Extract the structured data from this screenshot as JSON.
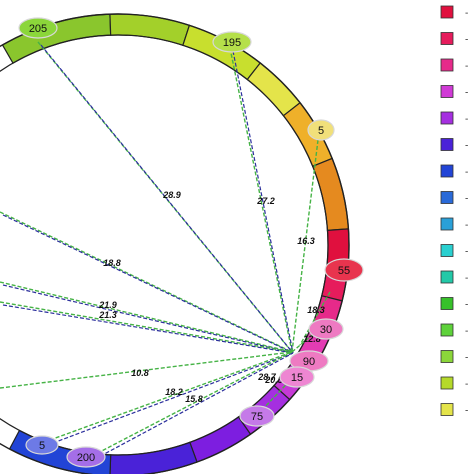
{
  "palette": {
    "yellow_green": "#b5d92a",
    "yellow": "#e4e44a",
    "orange_light": "#f2a324",
    "orange": "#e58a1f",
    "red": "#e0103e",
    "pink": "#e61c7d",
    "magenta": "#e03cbf",
    "violet": "#a52fe0",
    "purple": "#7d1ee0",
    "indigo": "#4a22d8",
    "blue": "#2244d6",
    "green": "#37c12a",
    "teal": "#23c9a8",
    "cyan": "#2ad0d0",
    "light_green": "#8bd63a",
    "green_dash": "#46b346",
    "navy_dash": "#2b2f9c"
  },
  "ring_segments": [
    {
      "color": "#8ac62d"
    },
    {
      "color": "#a3d02a"
    },
    {
      "color": "#c8df2e"
    },
    {
      "color": "#e4e44a"
    },
    {
      "color": "#efb02a"
    },
    {
      "color": "#e58a1f"
    },
    {
      "color": "#e0103e"
    },
    {
      "color": "#e61c5c"
    },
    {
      "color": "#e62a8a"
    },
    {
      "color": "#e33cb3"
    },
    {
      "color": "#c63ad6"
    },
    {
      "color": "#a52fe0"
    },
    {
      "color": "#7d1ee0"
    },
    {
      "color": "#4a22d8"
    },
    {
      "color": "#2244d6"
    }
  ],
  "nodes": [
    {
      "label": "205",
      "fill": "#8bd63a"
    },
    {
      "label": "195",
      "fill": "#b5e04a"
    },
    {
      "label": "5",
      "fill": "#f1e07a"
    },
    {
      "label": "55",
      "fill": "#e8344e"
    },
    {
      "label": "30",
      "fill": "#ee7ac2"
    },
    {
      "label": "90",
      "fill": "#ee7ac2"
    },
    {
      "label": "15",
      "fill": "#ee86d2"
    },
    {
      "label": "75",
      "fill": "#c57ae8"
    },
    {
      "label": "200",
      "fill": "#a46ee8"
    },
    {
      "label": "5",
      "fill": "#6d7ae6"
    }
  ],
  "edge_labels": [
    "28.9",
    "27.2",
    "16.3",
    "18.8",
    "21.9",
    "21.3",
    "10.8",
    "18.2",
    "15.8",
    "18.3",
    "12.8",
    "20.5",
    "28.7"
  ],
  "legend": {
    "dash": "-",
    "items": [
      {
        "color": "#e0103e"
      },
      {
        "color": "#e61c5c"
      },
      {
        "color": "#e62a8a"
      },
      {
        "color": "#d03ad6"
      },
      {
        "color": "#a52fe0"
      },
      {
        "color": "#4a22d8"
      },
      {
        "color": "#2244d6"
      },
      {
        "color": "#2a6ad8"
      },
      {
        "color": "#2aa0d8"
      },
      {
        "color": "#2ad0d0"
      },
      {
        "color": "#23c9a8"
      },
      {
        "color": "#37c12a"
      },
      {
        "color": "#5ed23a"
      },
      {
        "color": "#8bd63a"
      },
      {
        "color": "#b5d92a"
      },
      {
        "color": "#e4e44a"
      }
    ]
  }
}
